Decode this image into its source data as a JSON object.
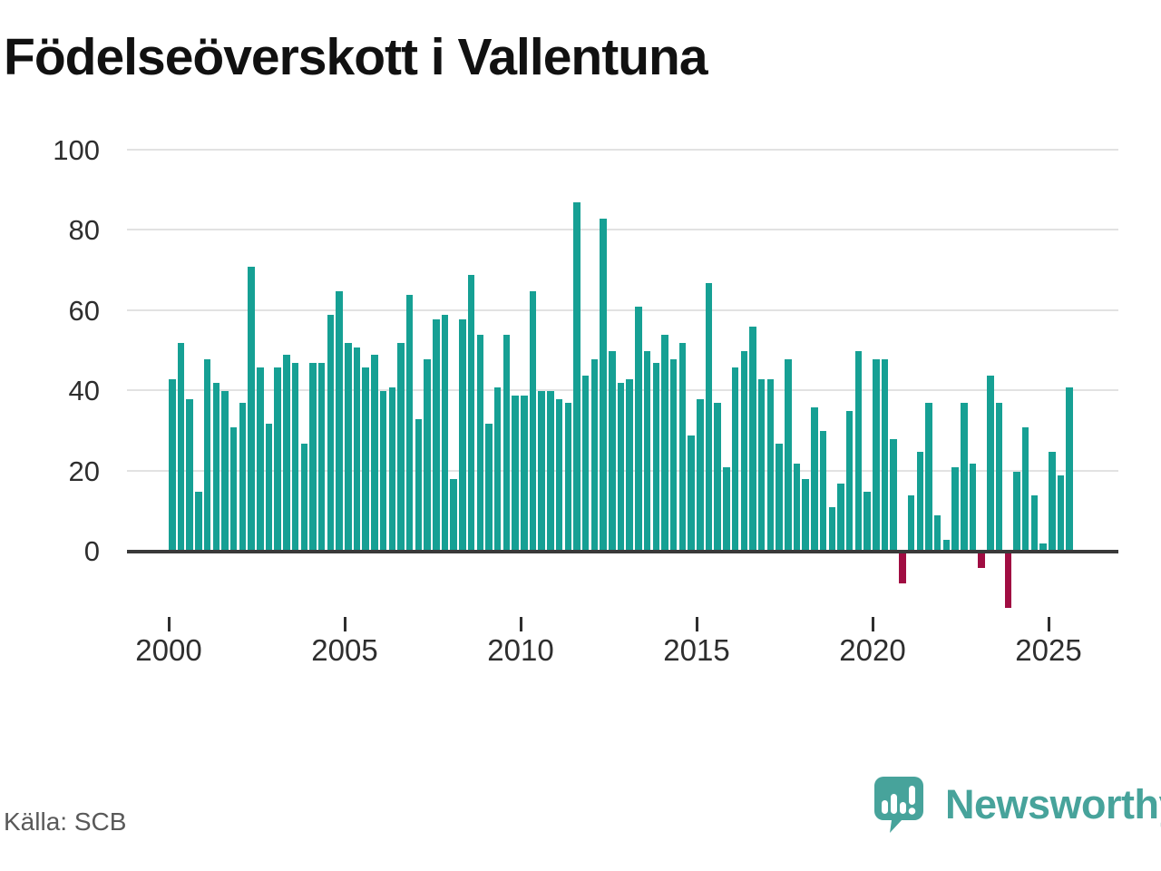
{
  "title": "Födelseöverskott i Vallentuna",
  "source": "Källa: SCB",
  "logo": {
    "text": "Newsworthy"
  },
  "colors": {
    "positive_bar": "#16a094",
    "negative_bar": "#a00d42",
    "logo_teal": "#47a39b",
    "axis_line": "#3a3a3a",
    "gridline": "#e2e2e2",
    "tick_label": "#2e2e2e",
    "source_text": "#595959"
  },
  "chart_data": {
    "type": "bar",
    "title": "Födelseöverskott i Vallentuna",
    "xlabel": "",
    "ylabel": "",
    "frequency": "quarterly",
    "start_quarter": "2000Q1",
    "end_quarter": "2025Q3",
    "values": [
      43,
      52,
      38,
      15,
      48,
      42,
      40,
      31,
      37,
      71,
      46,
      32,
      46,
      49,
      47,
      27,
      47,
      47,
      59,
      65,
      52,
      51,
      46,
      49,
      40,
      41,
      52,
      64,
      33,
      48,
      58,
      59,
      18,
      58,
      69,
      54,
      32,
      41,
      54,
      39,
      39,
      65,
      40,
      40,
      38,
      37,
      87,
      44,
      48,
      83,
      50,
      42,
      43,
      61,
      50,
      47,
      54,
      48,
      52,
      29,
      38,
      67,
      37,
      21,
      46,
      50,
      56,
      43,
      43,
      27,
      48,
      22,
      18,
      36,
      30,
      11,
      17,
      35,
      50,
      15,
      48,
      48,
      28,
      -8,
      14,
      25,
      37,
      9,
      3,
      21,
      37,
      22,
      -4,
      44,
      37,
      -14,
      20,
      31,
      14,
      2,
      25,
      19,
      41
    ],
    "x_ticks": [
      2000,
      2005,
      2010,
      2015,
      2020,
      2025
    ],
    "y_ticks": [
      0,
      20,
      40,
      60,
      80,
      100
    ],
    "ylim": [
      -15,
      100
    ],
    "grid": true,
    "legend": false
  }
}
